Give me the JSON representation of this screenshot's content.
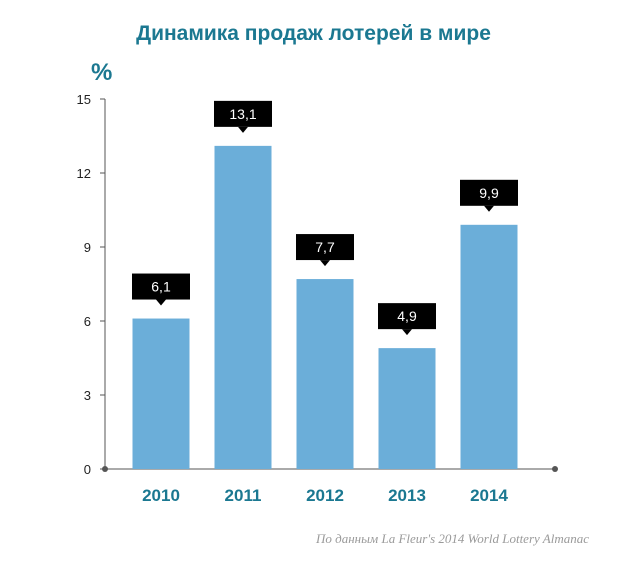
{
  "title": "Динамика продаж лотерей в мире",
  "unit": "%",
  "source": "По данным La Fleur's 2014 World Lottery Almanac",
  "colors": {
    "bar": "#6baed9",
    "title": "#1b7891",
    "label_bg": "#000000",
    "axis": "#555555"
  },
  "chart_data": {
    "type": "bar",
    "categories": [
      "2010",
      "2011",
      "2012",
      "2013",
      "2014"
    ],
    "values": [
      6.1,
      13.1,
      7.7,
      4.9,
      9.9
    ],
    "data_labels": [
      "6,1",
      "13,1",
      "7,7",
      "4,9",
      "9,9"
    ],
    "yticks": [
      0,
      3,
      6,
      9,
      12,
      15
    ],
    "ylim": [
      0,
      15
    ],
    "ylabel": "%",
    "xlabel": "",
    "grid": false,
    "legend": "none"
  }
}
